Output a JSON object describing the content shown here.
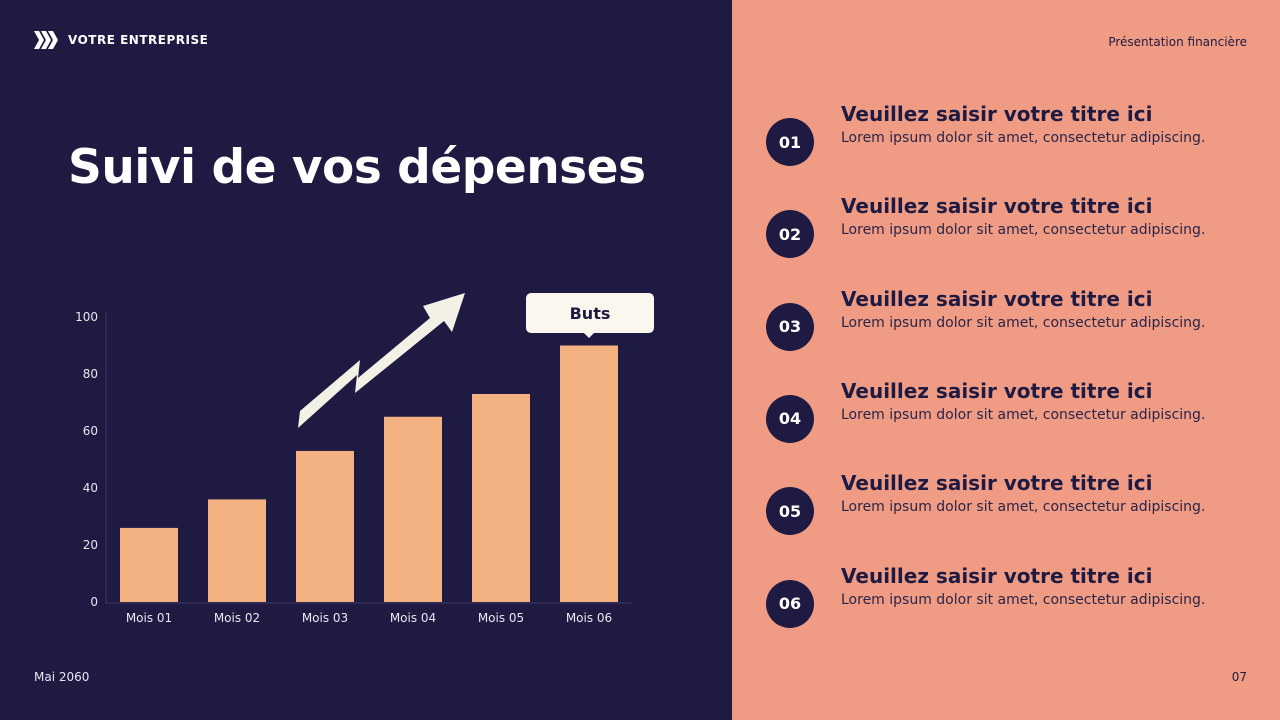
{
  "brand": {
    "name": "VOTRE ENTREPRISE",
    "icon": "chevrons-right-icon"
  },
  "header": {
    "title": "Suivi de vos dépenses",
    "subtitle": "Présentation financière"
  },
  "footer": {
    "date": "Mai 2060",
    "page": "07"
  },
  "colors": {
    "background": "#1f1a41",
    "panel": "#f09c85",
    "bar": "#f4b283",
    "arrow": "#f3f1e6",
    "callout": "#fbf7ee"
  },
  "chart_data": {
    "type": "bar",
    "categories": [
      "Mois 01",
      "Mois 02",
      "Mois 03",
      "Mois 04",
      "Mois 05",
      "Mois 06"
    ],
    "values": [
      26,
      36,
      53,
      65,
      73,
      90
    ],
    "yticks": [
      0,
      20,
      40,
      60,
      80,
      100
    ],
    "ylim": [
      0,
      100
    ],
    "grid": false,
    "annotation": {
      "label": "Buts",
      "target": "Mois 06"
    }
  },
  "items": [
    {
      "num": "01",
      "title": "Veuillez saisir votre titre ici",
      "desc": "Lorem ipsum dolor sit amet, consectetur adipiscing."
    },
    {
      "num": "02",
      "title": "Veuillez saisir votre titre ici",
      "desc": "Lorem ipsum dolor sit amet, consectetur adipiscing."
    },
    {
      "num": "03",
      "title": "Veuillez saisir votre titre ici",
      "desc": "Lorem ipsum dolor sit amet, consectetur adipiscing."
    },
    {
      "num": "04",
      "title": "Veuillez saisir votre titre ici",
      "desc": "Lorem ipsum dolor sit amet, consectetur adipiscing."
    },
    {
      "num": "05",
      "title": "Veuillez saisir votre titre ici",
      "desc": "Lorem ipsum dolor sit amet, consectetur adipiscing."
    },
    {
      "num": "06",
      "title": "Veuillez saisir votre titre ici",
      "desc": "Lorem ipsum dolor sit amet, consectetur adipiscing."
    }
  ]
}
